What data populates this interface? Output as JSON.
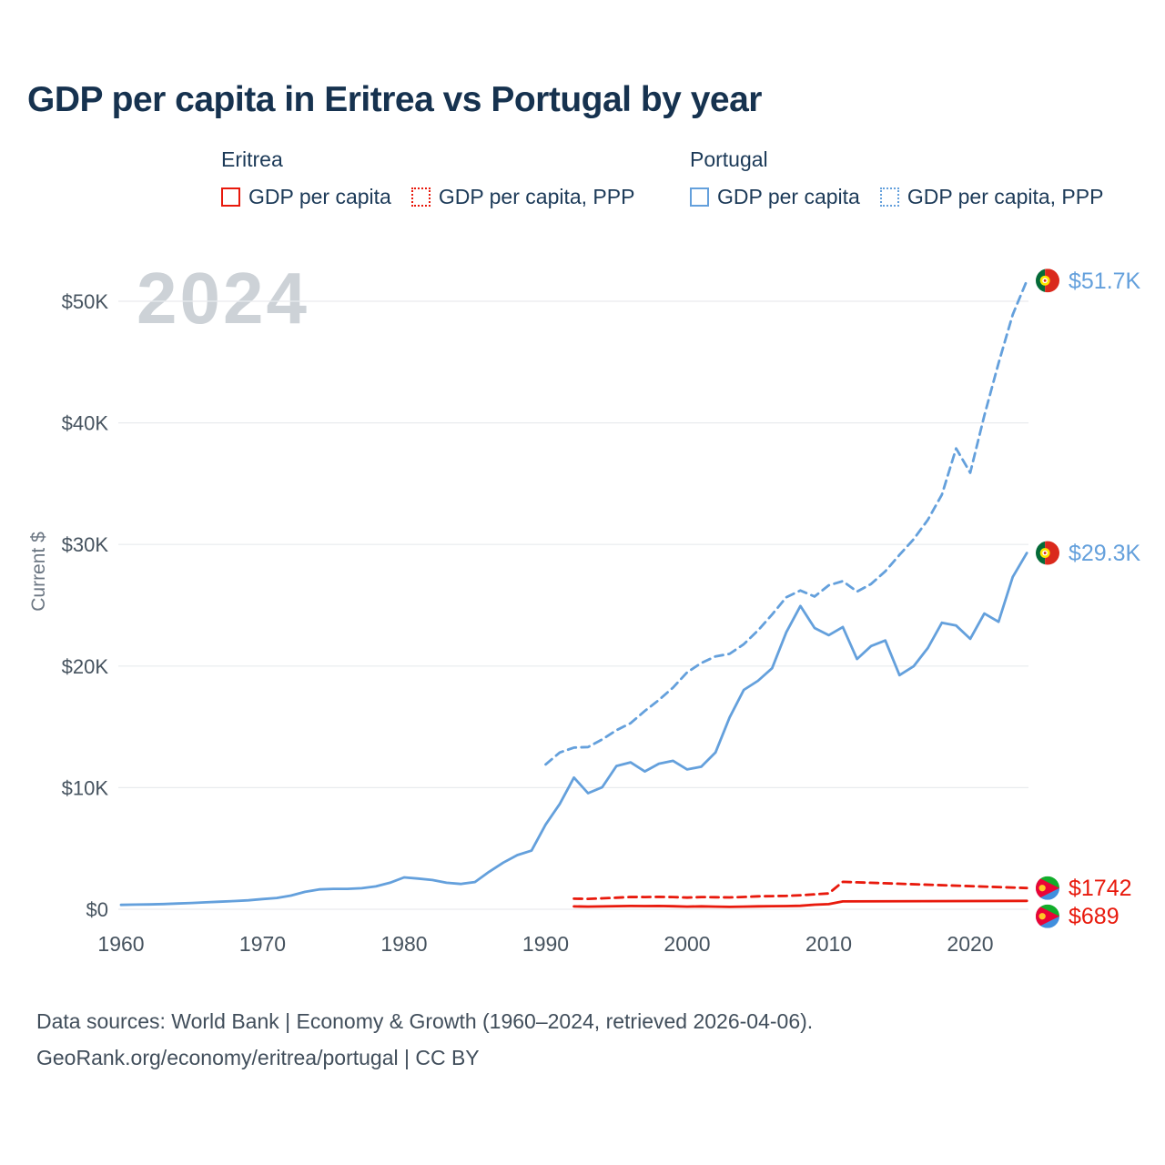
{
  "title": "GDP per capita in Eritrea vs Portugal by year",
  "watermark": "2024",
  "y_axis_label": "Current $",
  "legend": {
    "groups": [
      {
        "label": "Eritrea",
        "color": "#e8190c",
        "items": [
          {
            "label": "GDP per capita",
            "line_style": "solid"
          },
          {
            "label": "GDP per capita, PPP",
            "line_style": "dotted"
          }
        ]
      },
      {
        "label": "Portugal",
        "color": "#64a0dc",
        "items": [
          {
            "label": "GDP per capita",
            "line_style": "solid"
          },
          {
            "label": "GDP per capita, PPP",
            "line_style": "dotted"
          }
        ]
      }
    ]
  },
  "footer": {
    "line1": "Data sources: World Bank | Economy & Growth (1960–2024, retrieved 2026-04-06).",
    "line2": "GeoRank.org/economy/eritrea/portugal | CC BY"
  },
  "chart_data": {
    "type": "line",
    "title": "GDP per capita in Eritrea vs Portugal by year",
    "xlabel": "",
    "ylabel": "Current $",
    "xlim": [
      1960,
      2024
    ],
    "ylim": [
      0,
      52000
    ],
    "grid": true,
    "legend_position": "top",
    "x_ticks": [
      1960,
      1970,
      1980,
      1990,
      2000,
      2010,
      2020
    ],
    "y_ticks": [
      {
        "value": 0,
        "label": "$0"
      },
      {
        "value": 10000,
        "label": "$10K"
      },
      {
        "value": 20000,
        "label": "$20K"
      },
      {
        "value": 30000,
        "label": "$30K"
      },
      {
        "value": 40000,
        "label": "$40K"
      },
      {
        "value": 50000,
        "label": "$50K"
      }
    ],
    "series": [
      {
        "name": "Portugal GDP per capita, PPP",
        "country": "portugal",
        "color": "#64a0dc",
        "dashed": true,
        "end_label": "$51.7K",
        "years": [
          1990,
          1991,
          1992,
          1993,
          1994,
          1995,
          1996,
          1997,
          1998,
          1999,
          2000,
          2001,
          2002,
          2003,
          2004,
          2005,
          2006,
          2007,
          2008,
          2009,
          2010,
          2011,
          2012,
          2013,
          2014,
          2015,
          2016,
          2017,
          2018,
          2019,
          2020,
          2021,
          2022,
          2023,
          2024
        ],
        "values": [
          11910,
          12890,
          13290,
          13340,
          13970,
          14720,
          15300,
          16300,
          17210,
          18230,
          19480,
          20250,
          20790,
          21000,
          21800,
          22930,
          24240,
          25660,
          26210,
          25720,
          26640,
          26980,
          26120,
          26750,
          27790,
          29150,
          30430,
          32020,
          34100,
          37900,
          35900,
          40600,
          44900,
          48900,
          51700
        ]
      },
      {
        "name": "Portugal GDP per capita",
        "country": "portugal",
        "color": "#64a0dc",
        "dashed": false,
        "end_label": "$29.3K",
        "years": [
          1960,
          1961,
          1962,
          1963,
          1964,
          1965,
          1966,
          1967,
          1968,
          1969,
          1970,
          1971,
          1972,
          1973,
          1974,
          1975,
          1976,
          1977,
          1978,
          1979,
          1980,
          1981,
          1982,
          1983,
          1984,
          1985,
          1986,
          1987,
          1988,
          1989,
          1990,
          1991,
          1992,
          1993,
          1994,
          1995,
          1996,
          1997,
          1998,
          1999,
          2000,
          2001,
          2002,
          2003,
          2004,
          2005,
          2006,
          2007,
          2008,
          2009,
          2010,
          2011,
          2012,
          2013,
          2014,
          2015,
          2016,
          2017,
          2018,
          2019,
          2020,
          2021,
          2022,
          2023,
          2024
        ],
        "values": [
          360,
          380,
          400,
          430,
          470,
          520,
          570,
          620,
          670,
          730,
          840,
          930,
          1120,
          1430,
          1630,
          1680,
          1680,
          1730,
          1880,
          2180,
          2620,
          2520,
          2400,
          2180,
          2080,
          2240,
          3080,
          3830,
          4450,
          4820,
          6970,
          8660,
          10830,
          9540,
          10040,
          11780,
          12080,
          11330,
          11970,
          12210,
          11500,
          11720,
          12890,
          15770,
          18040,
          18790,
          19820,
          22780,
          24940,
          23130,
          22540,
          23210,
          20580,
          21650,
          22100,
          19250,
          19980,
          21480,
          23560,
          23330,
          22240,
          24320,
          23640,
          27330,
          29300
        ]
      },
      {
        "name": "Eritrea GDP per capita, PPP",
        "country": "eritrea",
        "color": "#e8190c",
        "dashed": true,
        "end_label": "$1742",
        "years": [
          1992,
          1993,
          1994,
          1995,
          1996,
          1997,
          1998,
          1999,
          2000,
          2001,
          2002,
          2003,
          2004,
          2005,
          2006,
          2007,
          2008,
          2009,
          2010,
          2011,
          2024
        ],
        "values": [
          870,
          850,
          900,
          950,
          1010,
          1000,
          1020,
          1000,
          960,
          1000,
          990,
          970,
          1010,
          1060,
          1080,
          1100,
          1150,
          1230,
          1300,
          2250,
          1742
        ]
      },
      {
        "name": "Eritrea GDP per capita",
        "country": "eritrea",
        "color": "#e8190c",
        "dashed": false,
        "end_label": "$689",
        "years": [
          1992,
          1993,
          1994,
          1995,
          1996,
          1997,
          1998,
          1999,
          2000,
          2001,
          2002,
          2003,
          2004,
          2005,
          2006,
          2007,
          2008,
          2009,
          2010,
          2011,
          2024
        ],
        "values": [
          230,
          215,
          235,
          255,
          270,
          265,
          270,
          250,
          220,
          240,
          215,
          195,
          215,
          240,
          255,
          265,
          285,
          375,
          420,
          642,
          689
        ]
      }
    ]
  }
}
